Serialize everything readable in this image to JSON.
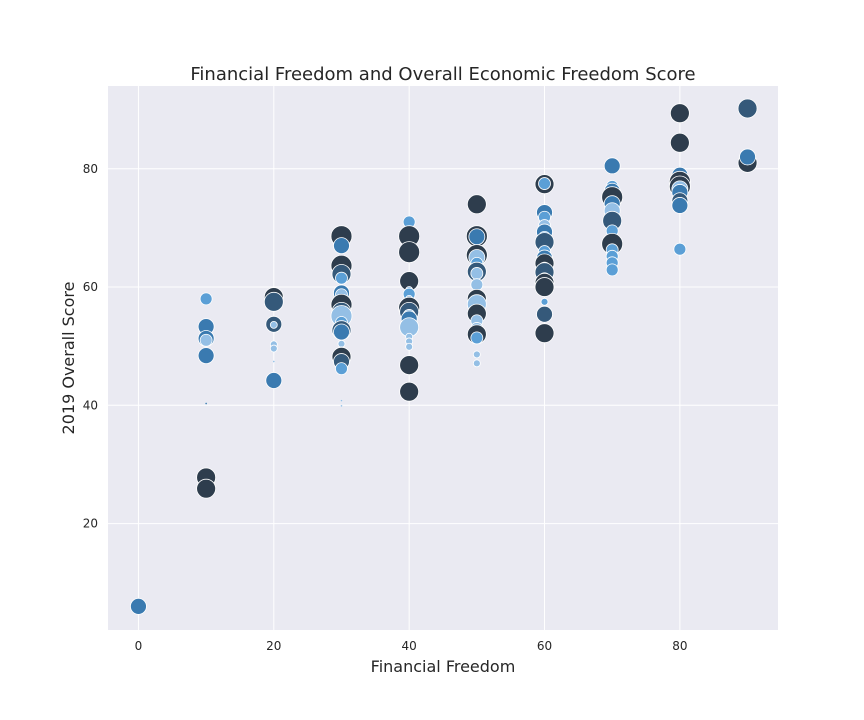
{
  "chart_data": {
    "type": "scatter",
    "title": "Financial Freedom and Overall Economic Freedom Score",
    "xlabel": "Financial Freedom",
    "ylabel": "2019 Overall Score",
    "xlim": [
      -4.5,
      94.5
    ],
    "ylim": [
      2,
      94
    ],
    "xticks": [
      0,
      20,
      40,
      60,
      80
    ],
    "yticks": [
      20,
      40,
      60,
      80
    ],
    "grid": true,
    "background": "#eaeaf2",
    "colors": {
      "dark": "#2e3d4d",
      "mid_dark": "#35597a",
      "mid": "#3a7ab0",
      "light": "#5b9fd6",
      "pale": "#94bfe5"
    },
    "points": [
      {
        "x": 0,
        "y": 6.0,
        "s": 3,
        "c": "mid"
      },
      {
        "x": 10,
        "y": 58.0,
        "s": 2,
        "c": "light"
      },
      {
        "x": 10,
        "y": 53.3,
        "s": 3,
        "c": "mid"
      },
      {
        "x": 10,
        "y": 51.3,
        "s": 3,
        "c": "mid"
      },
      {
        "x": 10,
        "y": 51.0,
        "s": 2,
        "c": "pale"
      },
      {
        "x": 10,
        "y": 48.4,
        "s": 3,
        "c": "mid"
      },
      {
        "x": 10,
        "y": 40.3,
        "s": 0,
        "c": "mid"
      },
      {
        "x": 10,
        "y": 27.8,
        "s": 4,
        "c": "dark"
      },
      {
        "x": 10,
        "y": 25.9,
        "s": 4,
        "c": "dark"
      },
      {
        "x": 20,
        "y": 58.3,
        "s": 4,
        "c": "dark"
      },
      {
        "x": 20,
        "y": 57.5,
        "s": 4,
        "c": "mid_dark"
      },
      {
        "x": 20,
        "y": 53.7,
        "s": 3,
        "c": "mid_dark"
      },
      {
        "x": 20,
        "y": 53.6,
        "s": 1,
        "c": "pale"
      },
      {
        "x": 20,
        "y": 50.3,
        "s": 1,
        "c": "pale"
      },
      {
        "x": 20,
        "y": 49.6,
        "s": 1,
        "c": "pale"
      },
      {
        "x": 20,
        "y": 47.4,
        "s": 0,
        "c": "pale"
      },
      {
        "x": 20,
        "y": 44.2,
        "s": 3,
        "c": "mid"
      },
      {
        "x": 30,
        "y": 68.6,
        "s": 5,
        "c": "dark"
      },
      {
        "x": 30,
        "y": 67.0,
        "s": 3,
        "c": "mid"
      },
      {
        "x": 30,
        "y": 63.6,
        "s": 5,
        "c": "dark"
      },
      {
        "x": 30,
        "y": 62.2,
        "s": 4,
        "c": "mid_dark"
      },
      {
        "x": 30,
        "y": 61.5,
        "s": 2,
        "c": "light"
      },
      {
        "x": 30,
        "y": 59.0,
        "s": 3,
        "c": "mid"
      },
      {
        "x": 30,
        "y": 58.7,
        "s": 2,
        "c": "pale"
      },
      {
        "x": 30,
        "y": 57.0,
        "s": 5,
        "c": "dark"
      },
      {
        "x": 30,
        "y": 55.8,
        "s": 4,
        "c": "mid_dark"
      },
      {
        "x": 30,
        "y": 55.1,
        "s": 5,
        "c": "pale"
      },
      {
        "x": 30,
        "y": 54.0,
        "s": 2,
        "c": "light"
      },
      {
        "x": 30,
        "y": 52.7,
        "s": 4,
        "c": "mid_dark"
      },
      {
        "x": 30,
        "y": 52.4,
        "s": 3,
        "c": "mid"
      },
      {
        "x": 30,
        "y": 50.4,
        "s": 1,
        "c": "pale"
      },
      {
        "x": 30,
        "y": 49.3,
        "s": 1,
        "c": "pale"
      },
      {
        "x": 30,
        "y": 48.2,
        "s": 4,
        "c": "dark"
      },
      {
        "x": 30,
        "y": 47.4,
        "s": 3,
        "c": "mid_dark"
      },
      {
        "x": 30,
        "y": 46.2,
        "s": 2,
        "c": "light"
      },
      {
        "x": 30,
        "y": 40.8,
        "s": 0,
        "c": "pale"
      },
      {
        "x": 30,
        "y": 39.9,
        "s": 0,
        "c": "pale"
      },
      {
        "x": 40,
        "y": 71.0,
        "s": 2,
        "c": "light"
      },
      {
        "x": 40,
        "y": 68.6,
        "s": 5,
        "c": "dark"
      },
      {
        "x": 40,
        "y": 65.9,
        "s": 5,
        "c": "dark"
      },
      {
        "x": 40,
        "y": 61.0,
        "s": 4,
        "c": "dark"
      },
      {
        "x": 40,
        "y": 59.5,
        "s": 1,
        "c": "pale"
      },
      {
        "x": 40,
        "y": 58.8,
        "s": 2,
        "c": "light"
      },
      {
        "x": 40,
        "y": 58.0,
        "s": 1,
        "c": "pale"
      },
      {
        "x": 40,
        "y": 57.3,
        "s": 2,
        "c": "pale"
      },
      {
        "x": 40,
        "y": 56.5,
        "s": 5,
        "c": "dark"
      },
      {
        "x": 40,
        "y": 55.8,
        "s": 4,
        "c": "mid_dark"
      },
      {
        "x": 40,
        "y": 55.2,
        "s": 2,
        "c": "pale"
      },
      {
        "x": 40,
        "y": 54.6,
        "s": 3,
        "c": "mid"
      },
      {
        "x": 40,
        "y": 53.8,
        "s": 1,
        "c": "pale"
      },
      {
        "x": 40,
        "y": 53.2,
        "s": 4,
        "c": "pale"
      },
      {
        "x": 40,
        "y": 51.6,
        "s": 1,
        "c": "pale"
      },
      {
        "x": 40,
        "y": 50.8,
        "s": 1,
        "c": "pale"
      },
      {
        "x": 40,
        "y": 49.9,
        "s": 1,
        "c": "pale"
      },
      {
        "x": 40,
        "y": 46.8,
        "s": 4,
        "c": "dark"
      },
      {
        "x": 40,
        "y": 42.3,
        "s": 4,
        "c": "dark"
      },
      {
        "x": 50,
        "y": 74.0,
        "s": 4,
        "c": "dark"
      },
      {
        "x": 50,
        "y": 68.6,
        "s": 5,
        "c": "dark"
      },
      {
        "x": 50,
        "y": 68.5,
        "s": 3,
        "c": "mid"
      },
      {
        "x": 50,
        "y": 65.4,
        "s": 5,
        "c": "dark"
      },
      {
        "x": 50,
        "y": 65.0,
        "s": 3,
        "c": "pale"
      },
      {
        "x": 50,
        "y": 64.0,
        "s": 2,
        "c": "light"
      },
      {
        "x": 50,
        "y": 62.6,
        "s": 4,
        "c": "mid_dark"
      },
      {
        "x": 50,
        "y": 62.3,
        "s": 2,
        "c": "pale"
      },
      {
        "x": 50,
        "y": 60.4,
        "s": 2,
        "c": "pale"
      },
      {
        "x": 50,
        "y": 58.0,
        "s": 4,
        "c": "dark"
      },
      {
        "x": 50,
        "y": 57.1,
        "s": 4,
        "c": "pale"
      },
      {
        "x": 50,
        "y": 55.5,
        "s": 4,
        "c": "dark"
      },
      {
        "x": 50,
        "y": 54.3,
        "s": 2,
        "c": "pale"
      },
      {
        "x": 50,
        "y": 53.0,
        "s": 2,
        "c": "pale"
      },
      {
        "x": 50,
        "y": 52.0,
        "s": 4,
        "c": "dark"
      },
      {
        "x": 50,
        "y": 51.4,
        "s": 2,
        "c": "light"
      },
      {
        "x": 50,
        "y": 48.6,
        "s": 1,
        "c": "pale"
      },
      {
        "x": 50,
        "y": 47.1,
        "s": 1,
        "c": "pale"
      },
      {
        "x": 60,
        "y": 77.4,
        "s": 4,
        "c": "dark"
      },
      {
        "x": 60,
        "y": 77.5,
        "s": 2,
        "c": "light"
      },
      {
        "x": 60,
        "y": 72.6,
        "s": 3,
        "c": "mid"
      },
      {
        "x": 60,
        "y": 71.8,
        "s": 2,
        "c": "light"
      },
      {
        "x": 60,
        "y": 70.4,
        "s": 2,
        "c": "pale"
      },
      {
        "x": 60,
        "y": 69.3,
        "s": 3,
        "c": "mid"
      },
      {
        "x": 60,
        "y": 68.4,
        "s": 2,
        "c": "light"
      },
      {
        "x": 60,
        "y": 67.6,
        "s": 4,
        "c": "mid_dark"
      },
      {
        "x": 60,
        "y": 66.0,
        "s": 2,
        "c": "light"
      },
      {
        "x": 60,
        "y": 64.9,
        "s": 3,
        "c": "mid"
      },
      {
        "x": 60,
        "y": 64.0,
        "s": 4,
        "c": "dark"
      },
      {
        "x": 60,
        "y": 63.2,
        "s": 2,
        "c": "light"
      },
      {
        "x": 60,
        "y": 62.5,
        "s": 4,
        "c": "mid_dark"
      },
      {
        "x": 60,
        "y": 61.4,
        "s": 2,
        "c": "pale"
      },
      {
        "x": 60,
        "y": 60.7,
        "s": 4,
        "c": "dark"
      },
      {
        "x": 60,
        "y": 60.0,
        "s": 4,
        "c": "dark"
      },
      {
        "x": 60,
        "y": 57.5,
        "s": 1,
        "c": "light"
      },
      {
        "x": 60,
        "y": 55.4,
        "s": 3,
        "c": "mid_dark"
      },
      {
        "x": 60,
        "y": 52.2,
        "s": 4,
        "c": "dark"
      },
      {
        "x": 70,
        "y": 80.5,
        "s": 3,
        "c": "mid"
      },
      {
        "x": 70,
        "y": 77.0,
        "s": 2,
        "c": "light"
      },
      {
        "x": 70,
        "y": 76.2,
        "s": 3,
        "c": "mid"
      },
      {
        "x": 70,
        "y": 75.2,
        "s": 5,
        "c": "dark"
      },
      {
        "x": 70,
        "y": 74.1,
        "s": 3,
        "c": "mid"
      },
      {
        "x": 70,
        "y": 72.9,
        "s": 3,
        "c": "pale"
      },
      {
        "x": 70,
        "y": 71.4,
        "s": 3,
        "c": "mid"
      },
      {
        "x": 70,
        "y": 71.2,
        "s": 4,
        "c": "mid_dark"
      },
      {
        "x": 70,
        "y": 69.5,
        "s": 2,
        "c": "light"
      },
      {
        "x": 70,
        "y": 67.3,
        "s": 5,
        "c": "dark"
      },
      {
        "x": 70,
        "y": 66.3,
        "s": 2,
        "c": "light"
      },
      {
        "x": 70,
        "y": 65.2,
        "s": 2,
        "c": "light"
      },
      {
        "x": 70,
        "y": 64.1,
        "s": 2,
        "c": "light"
      },
      {
        "x": 70,
        "y": 62.9,
        "s": 2,
        "c": "light"
      },
      {
        "x": 80,
        "y": 89.4,
        "s": 4,
        "c": "dark"
      },
      {
        "x": 80,
        "y": 84.4,
        "s": 4,
        "c": "dark"
      },
      {
        "x": 80,
        "y": 78.9,
        "s": 3,
        "c": "mid"
      },
      {
        "x": 80,
        "y": 77.8,
        "s": 5,
        "c": "dark"
      },
      {
        "x": 80,
        "y": 77.0,
        "s": 5,
        "c": "dark"
      },
      {
        "x": 80,
        "y": 76.6,
        "s": 3,
        "c": "pale"
      },
      {
        "x": 80,
        "y": 76.0,
        "s": 3,
        "c": "mid"
      },
      {
        "x": 80,
        "y": 74.6,
        "s": 3,
        "c": "mid_dark"
      },
      {
        "x": 80,
        "y": 73.8,
        "s": 3,
        "c": "mid"
      },
      {
        "x": 80,
        "y": 66.4,
        "s": 2,
        "c": "light"
      },
      {
        "x": 90,
        "y": 90.2,
        "s": 4,
        "c": "mid_dark"
      },
      {
        "x": 90,
        "y": 81.0,
        "s": 4,
        "c": "dark"
      },
      {
        "x": 90,
        "y": 82.0,
        "s": 3,
        "c": "mid"
      }
    ]
  }
}
